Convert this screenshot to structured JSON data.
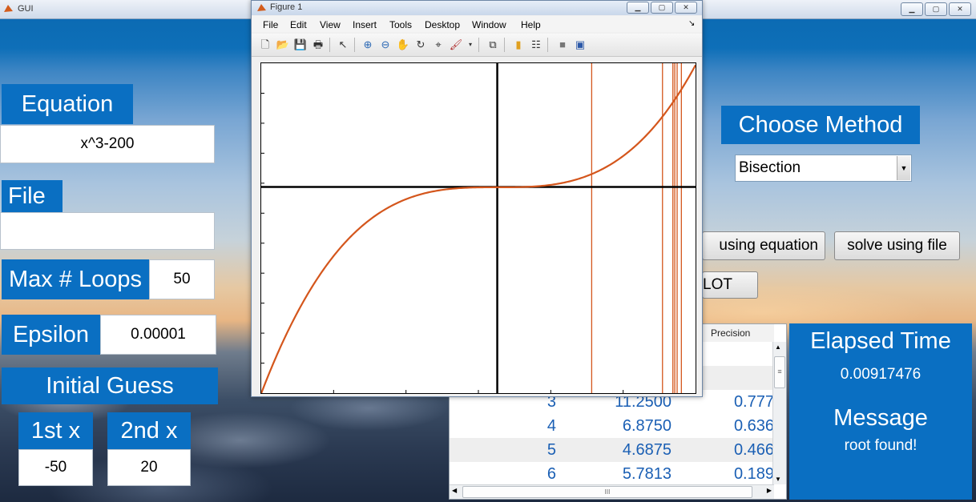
{
  "gui": {
    "title": "GUI",
    "equation": {
      "label": "Equation",
      "value": "x^3-200"
    },
    "file": {
      "label": "File",
      "value": ""
    },
    "max_loops": {
      "label": "Max # Loops",
      "value": "50"
    },
    "epsilon": {
      "label": "Epsilon",
      "value": "0.00001"
    },
    "initial_guess": {
      "label": "Initial Guess",
      "first_label": "1st x",
      "first_value": "-50",
      "second_label": "2nd x",
      "second_value": "20"
    },
    "method": {
      "label": "Choose Method",
      "selected": "Bisection"
    },
    "buttons": {
      "solve_equation": "using equation",
      "solve_file": "solve using file",
      "plot": "LOT"
    },
    "table": {
      "header_precision": "Precision",
      "rows": [
        {
          "iter": "3",
          "x": "11.2500",
          "precision": "0.777"
        },
        {
          "iter": "4",
          "x": "6.8750",
          "precision": "0.636"
        },
        {
          "iter": "5",
          "x": "4.6875",
          "precision": "0.466"
        },
        {
          "iter": "6",
          "x": "5.7813",
          "precision": "0.189"
        }
      ]
    },
    "elapsed": {
      "label": "Elapsed Time",
      "value": "0.00917476"
    },
    "message": {
      "label": "Message",
      "value": "root found!"
    },
    "hscroll_grip": "III",
    "vscroll_grip": "≡"
  },
  "figure": {
    "title": "Figure 1",
    "menu": [
      "File",
      "Edit",
      "View",
      "Insert",
      "Tools",
      "Desktop",
      "Window",
      "Help"
    ],
    "menu_overflow": "↘"
  },
  "chart_data": {
    "type": "line",
    "function": "x^3-200",
    "line_color": "#d4561c",
    "vertical_lines_x": [
      20,
      35,
      37.2,
      37.6,
      38.1,
      39
    ],
    "xlim": [
      -50,
      42
    ],
    "ylim": [
      -125000,
      75000
    ],
    "grid": false
  }
}
